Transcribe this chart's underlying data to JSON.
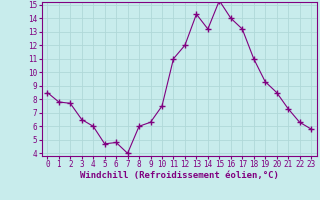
{
  "x": [
    0,
    1,
    2,
    3,
    4,
    5,
    6,
    7,
    8,
    9,
    10,
    11,
    12,
    13,
    14,
    15,
    16,
    17,
    18,
    19,
    20,
    21,
    22,
    23
  ],
  "y": [
    8.5,
    7.8,
    7.7,
    6.5,
    6.0,
    4.7,
    4.8,
    4.0,
    6.0,
    6.3,
    7.5,
    11.0,
    12.0,
    14.3,
    13.2,
    15.3,
    14.0,
    13.2,
    11.0,
    9.3,
    8.5,
    7.3,
    6.3,
    5.8
  ],
  "line_color": "#800080",
  "marker": "+",
  "marker_size": 4,
  "bg_color": "#c8ecec",
  "grid_color": "#b0d8d8",
  "xlabel": "Windchill (Refroidissement éolien,°C)",
  "xlabel_color": "#800080",
  "tick_color": "#800080",
  "spine_color": "#800080",
  "ylim": [
    4,
    15
  ],
  "xlim": [
    -0.5,
    23.5
  ],
  "yticks": [
    4,
    5,
    6,
    7,
    8,
    9,
    10,
    11,
    12,
    13,
    14,
    15
  ],
  "xticks": [
    0,
    1,
    2,
    3,
    4,
    5,
    6,
    7,
    8,
    9,
    10,
    11,
    12,
    13,
    14,
    15,
    16,
    17,
    18,
    19,
    20,
    21,
    22,
    23
  ],
  "tick_fontsize": 5.5,
  "xlabel_fontsize": 6.5
}
